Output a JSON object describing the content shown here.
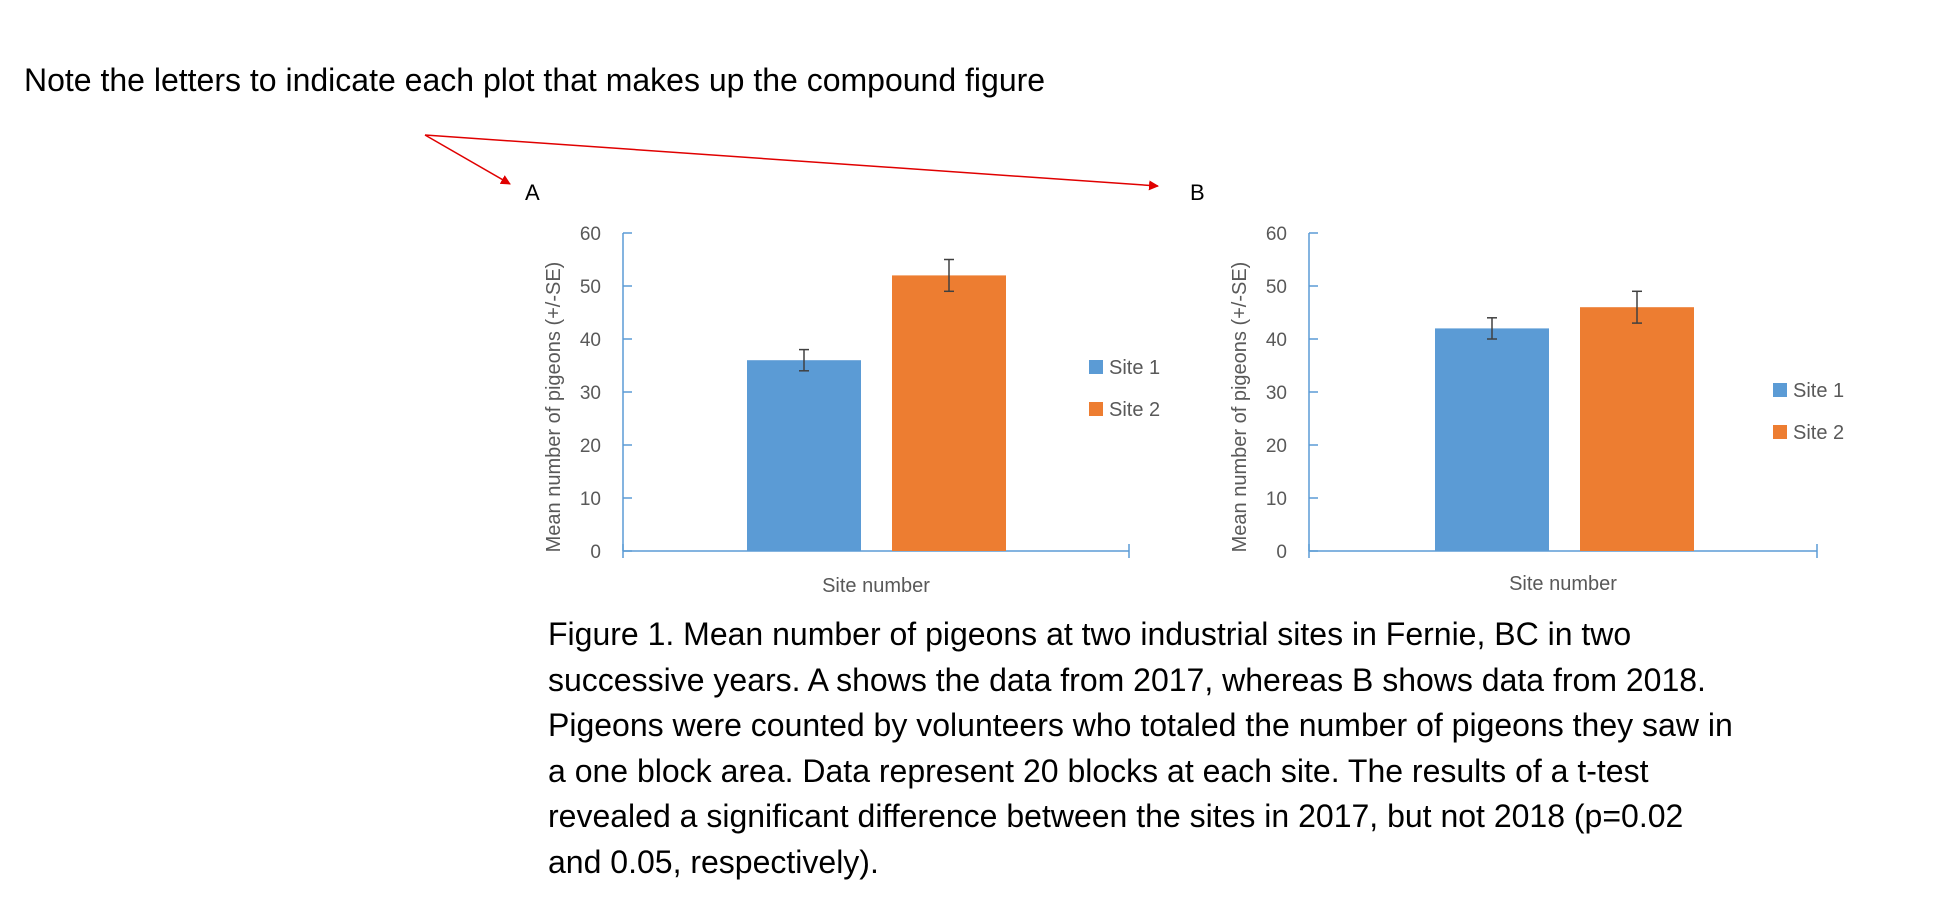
{
  "note": "Note the letters to indicate each plot that makes up the compound figure",
  "caption_lines": [
    "Figure 1. Mean number of pigeons at two industrial sites in Fernie, BC in two",
    "successive years.  A shows the data from 2017, whereas B shows data from 2018.",
    "Pigeons were counted by volunteers who totaled the number of pigeons they saw in",
    "a one block area.  Data represent 20 blocks at each site.  The results of a t-test",
    "revealed a significant difference between the sites in 2017, but not 2018 (p=0.02",
    "and 0.05, respectively)."
  ],
  "colors": {
    "site1": "#5B9BD5",
    "site2": "#ED7D31",
    "axis": "#5B9BD5",
    "arrow": "#E00000",
    "errorbar": "#404040"
  },
  "chart_data": [
    {
      "type": "bar",
      "panel_label": "A",
      "xlabel": "Site number",
      "ylabel": "Mean number of pigeons (+/-SE)",
      "ylim": [
        0,
        60
      ],
      "yticks": [
        0,
        10,
        20,
        30,
        40,
        50,
        60
      ],
      "grid": false,
      "legend_position": "right",
      "series": [
        {
          "name": "Site 1",
          "value": 36,
          "error": 2
        },
        {
          "name": "Site 2",
          "value": 52,
          "error": 3
        }
      ]
    },
    {
      "type": "bar",
      "panel_label": "B",
      "xlabel": "Site number",
      "ylabel": "Mean number of pigeons (+/-SE)",
      "ylim": [
        0,
        60
      ],
      "yticks": [
        0,
        10,
        20,
        30,
        40,
        50,
        60
      ],
      "grid": false,
      "legend_position": "right",
      "series": [
        {
          "name": "Site 1",
          "value": 42,
          "error": 2
        },
        {
          "name": "Site 2",
          "value": 46,
          "error": 3
        }
      ]
    }
  ]
}
